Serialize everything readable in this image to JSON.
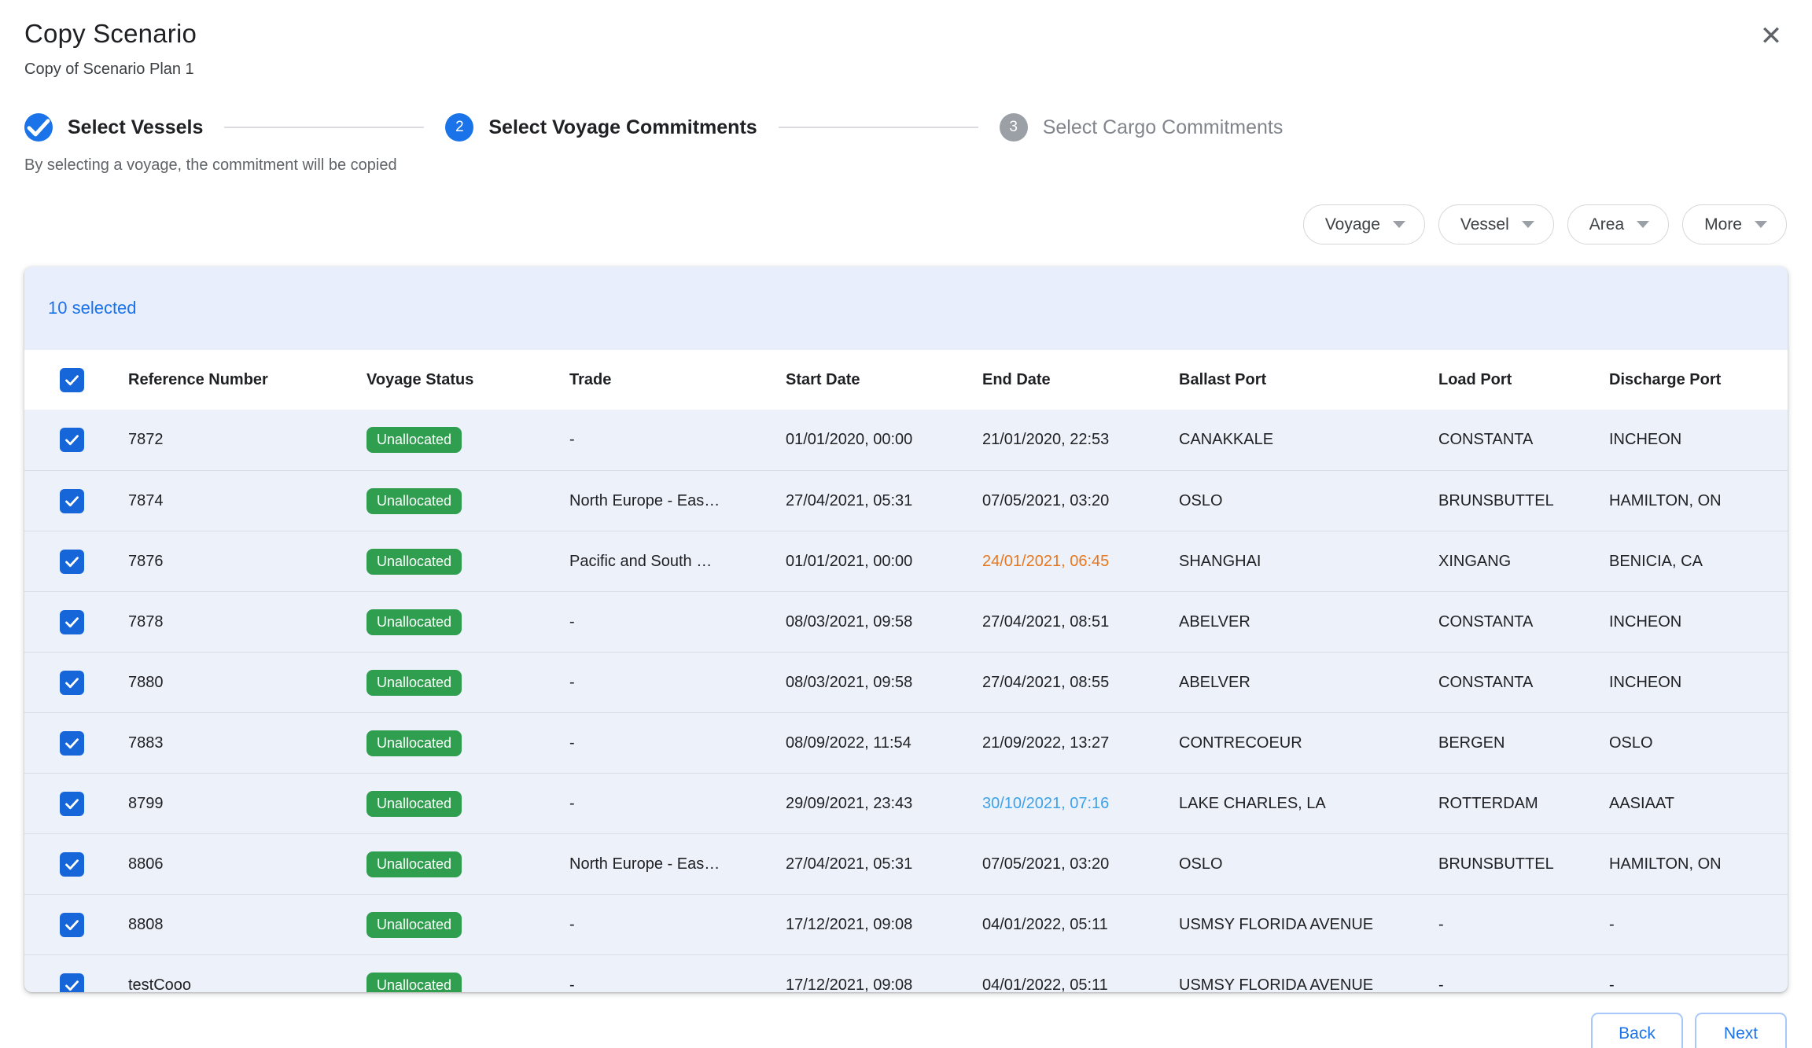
{
  "dialog": {
    "title": "Copy Scenario",
    "subtitle": "Copy of Scenario Plan 1",
    "helper_text": "By selecting a voyage, the commitment will be copied",
    "close_glyph": "✕"
  },
  "stepper": {
    "steps": [
      {
        "number": "1",
        "label": "Select Vessels",
        "state": "completed"
      },
      {
        "number": "2",
        "label": "Select Voyage Commitments",
        "state": "active"
      },
      {
        "number": "3",
        "label": "Select Cargo Commitments",
        "state": "inactive"
      }
    ]
  },
  "filters": [
    {
      "label": "Voyage"
    },
    {
      "label": "Vessel"
    },
    {
      "label": "Area"
    },
    {
      "label": "More"
    }
  ],
  "table": {
    "selected_text": "10 selected",
    "columns": [
      "Reference Number",
      "Voyage Status",
      "Trade",
      "Start Date",
      "End Date",
      "Ballast Port",
      "Load Port",
      "Discharge Port"
    ],
    "rows": [
      {
        "checked": true,
        "reference": "7872",
        "status": "Unallocated",
        "trade": "-",
        "start": "01/01/2020, 00:00",
        "end": "21/01/2020, 22:53",
        "end_color": "default",
        "ballast": "CANAKKALE",
        "load": "CONSTANTA",
        "discharge": "INCHEON"
      },
      {
        "checked": true,
        "reference": "7874",
        "status": "Unallocated",
        "trade": "North Europe - Eas…",
        "start": "27/04/2021, 05:31",
        "end": "07/05/2021, 03:20",
        "end_color": "default",
        "ballast": "OSLO",
        "load": "BRUNSBUTTEL",
        "discharge": "HAMILTON, ON"
      },
      {
        "checked": true,
        "reference": "7876",
        "status": "Unallocated",
        "trade": "Pacific and South …",
        "start": "01/01/2021, 00:00",
        "end": "24/01/2021, 06:45",
        "end_color": "orange",
        "ballast": "SHANGHAI",
        "load": "XINGANG",
        "discharge": "BENICIA, CA"
      },
      {
        "checked": true,
        "reference": "7878",
        "status": "Unallocated",
        "trade": "-",
        "start": "08/03/2021, 09:58",
        "end": "27/04/2021, 08:51",
        "end_color": "default",
        "ballast": "ABELVER",
        "load": "CONSTANTA",
        "discharge": "INCHEON"
      },
      {
        "checked": true,
        "reference": "7880",
        "status": "Unallocated",
        "trade": "-",
        "start": "08/03/2021, 09:58",
        "end": "27/04/2021, 08:55",
        "end_color": "default",
        "ballast": "ABELVER",
        "load": "CONSTANTA",
        "discharge": "INCHEON"
      },
      {
        "checked": true,
        "reference": "7883",
        "status": "Unallocated",
        "trade": "-",
        "start": "08/09/2022, 11:54",
        "end": "21/09/2022, 13:27",
        "end_color": "default",
        "ballast": "CONTRECOEUR",
        "load": "BERGEN",
        "discharge": "OSLO"
      },
      {
        "checked": true,
        "reference": "8799",
        "status": "Unallocated",
        "trade": "-",
        "start": "29/09/2021, 23:43",
        "end": "30/10/2021, 07:16",
        "end_color": "blue",
        "ballast": "LAKE CHARLES, LA",
        "load": "ROTTERDAM",
        "discharge": "AASIAAT"
      },
      {
        "checked": true,
        "reference": "8806",
        "status": "Unallocated",
        "trade": "North Europe - Eas…",
        "start": "27/04/2021, 05:31",
        "end": "07/05/2021, 03:20",
        "end_color": "default",
        "ballast": "OSLO",
        "load": "BRUNSBUTTEL",
        "discharge": "HAMILTON, ON"
      },
      {
        "checked": true,
        "reference": "8808",
        "status": "Unallocated",
        "trade": "-",
        "start": "17/12/2021, 09:08",
        "end": "04/01/2022, 05:11",
        "end_color": "default",
        "ballast": "USMSY FLORIDA AVENUE",
        "load": "-",
        "discharge": "-"
      },
      {
        "checked": true,
        "reference": "testCooo",
        "status": "Unallocated",
        "trade": "-",
        "start": "17/12/2021, 09:08",
        "end": "04/01/2022, 05:11",
        "end_color": "default",
        "ballast": "USMSY FLORIDA AVENUE",
        "load": "-",
        "discharge": "-"
      }
    ]
  },
  "footer": {
    "back_label": "Back",
    "next_label": "Next"
  },
  "colors": {
    "accent_blue": "#1a73e8",
    "checkbox_blue": "#1766d9",
    "badge_green": "#2f9e4f",
    "warning_orange": "#e8771e",
    "info_blue": "#3da2e8"
  }
}
